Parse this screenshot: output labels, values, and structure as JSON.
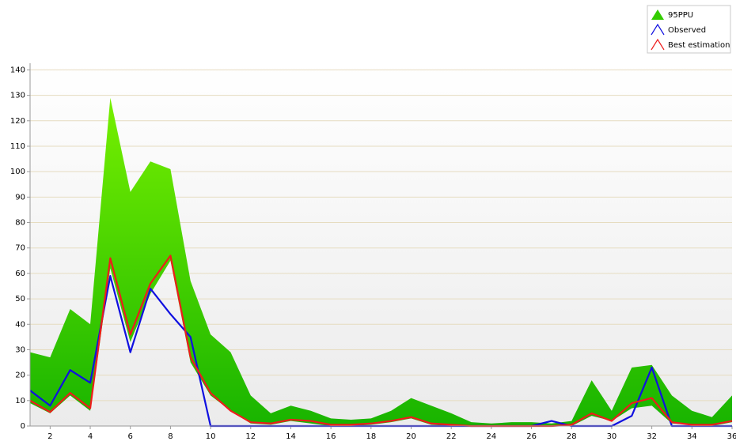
{
  "chart_data": {
    "type": "line",
    "x": [
      1,
      2,
      3,
      4,
      5,
      6,
      7,
      8,
      9,
      10,
      11,
      12,
      13,
      14,
      15,
      16,
      17,
      18,
      19,
      20,
      21,
      22,
      23,
      24,
      25,
      26,
      27,
      28,
      29,
      30,
      31,
      32,
      33,
      34,
      35,
      36
    ],
    "series": [
      {
        "name": "95PPU",
        "color": "#33cc00",
        "upper": [
          29,
          27,
          46,
          40,
          129,
          92,
          104,
          101,
          57,
          36,
          29,
          12,
          5,
          8,
          6,
          3,
          2.5,
          3,
          6,
          11,
          8,
          5,
          1.5,
          1,
          1.5,
          1.5,
          1,
          2,
          18,
          6,
          23,
          24,
          12,
          6,
          3.5,
          12
        ],
        "lower": [
          9,
          5,
          12,
          6,
          62,
          33,
          52,
          65,
          25,
          12,
          6,
          1,
          0.5,
          2,
          1,
          0,
          0,
          0.5,
          1.5,
          3,
          0.5,
          0,
          0,
          0,
          0,
          0,
          0,
          0,
          4,
          2,
          7,
          8,
          1,
          0.5,
          0,
          1.5
        ]
      },
      {
        "name": "Observed",
        "color": "#1010e0",
        "values": [
          14,
          8,
          22,
          17,
          59,
          29,
          54,
          44,
          35,
          0,
          0,
          0,
          0,
          0,
          0,
          0,
          0,
          0,
          0,
          0,
          0,
          0,
          0,
          0,
          0,
          0,
          2,
          0,
          0,
          0,
          4,
          23,
          0,
          0,
          0,
          0
        ]
      },
      {
        "name": "Best estimation",
        "color": "#ee1c1c",
        "values": [
          10,
          5.5,
          13,
          7,
          66,
          36,
          56,
          67,
          27,
          13,
          6,
          1.5,
          1,
          2.5,
          2,
          0.5,
          0.5,
          1,
          2,
          3.5,
          1,
          0.5,
          0,
          0,
          0,
          0,
          0,
          0.5,
          5,
          2,
          9,
          11,
          1.5,
          0.5,
          0.5,
          2
        ]
      }
    ],
    "xlim": [
      1,
      36
    ],
    "xticks": [
      2,
      4,
      6,
      8,
      10,
      12,
      14,
      16,
      18,
      20,
      22,
      24,
      26,
      28,
      30,
      32,
      34,
      36
    ],
    "ylim": [
      0,
      142
    ],
    "yticks": [
      0,
      10,
      20,
      30,
      40,
      50,
      60,
      70,
      80,
      90,
      100,
      110,
      120,
      130,
      140
    ],
    "grid": true,
    "legend": "top-right"
  }
}
